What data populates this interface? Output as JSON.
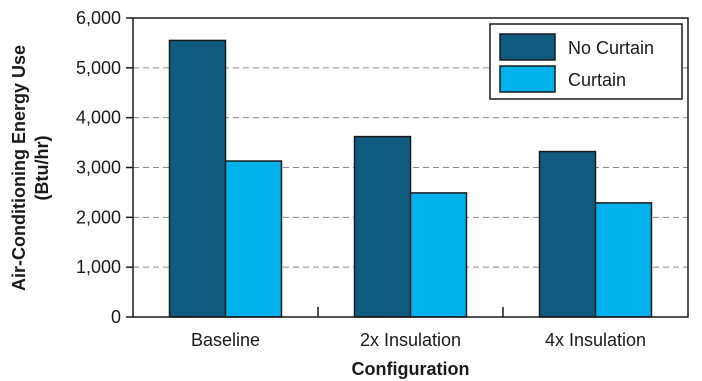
{
  "chart_data": {
    "type": "bar",
    "title": "",
    "xlabel": "Configuration",
    "ylabel_lines": [
      "Air-Conditioning Energy Use",
      "(Btu/hr)"
    ],
    "categories": [
      "Baseline",
      "2x Insulation",
      "4x Insulation"
    ],
    "series": [
      {
        "name": "No Curtain",
        "values": [
          5550,
          3620,
          3320
        ],
        "color": "#0f5c80"
      },
      {
        "name": "Curtain",
        "values": [
          3130,
          2490,
          2290
        ],
        "color": "#00b2ec"
      }
    ],
    "ylim": [
      0,
      6000
    ],
    "yticks": [
      0,
      1000,
      2000,
      3000,
      4000,
      5000,
      6000
    ],
    "ytick_labels": [
      "0",
      "1,000",
      "2,000",
      "3,000",
      "4,000",
      "5,000",
      "6,000"
    ],
    "grid": "horizontal-dashed",
    "legend_position": "top-right",
    "colors": {
      "grid": "#8a8a8a",
      "axis": "#1a1a1a"
    }
  }
}
